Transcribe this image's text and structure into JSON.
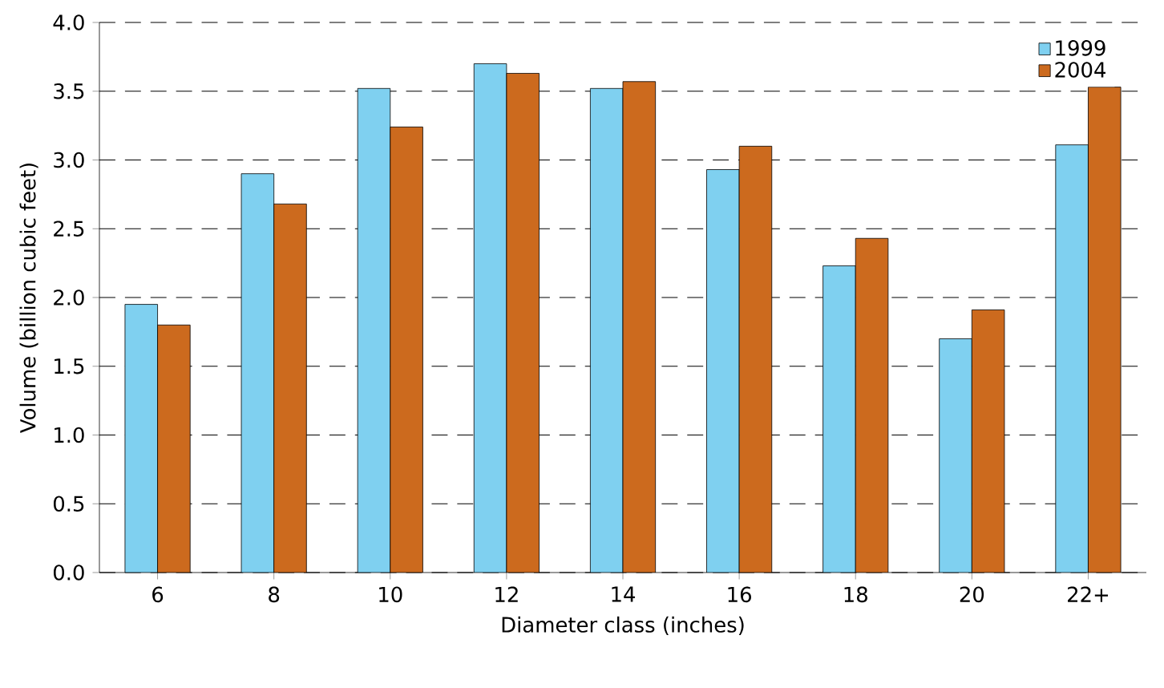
{
  "chart_data": {
    "type": "bar",
    "xlabel": "Diameter class (inches)",
    "ylabel": "Volume (billion cubic feet)",
    "categories": [
      "6",
      "8",
      "10",
      "12",
      "14",
      "16",
      "18",
      "20",
      "22+"
    ],
    "series": [
      {
        "name": "1999",
        "color": "#7fd0f0",
        "values": [
          1.95,
          2.9,
          3.52,
          3.7,
          3.52,
          2.93,
          2.23,
          1.7,
          3.11
        ]
      },
      {
        "name": "2004",
        "color": "#cc6a1e",
        "values": [
          1.8,
          2.68,
          3.24,
          3.63,
          3.57,
          3.1,
          2.43,
          1.91,
          3.53
        ]
      }
    ],
    "ylim": [
      0,
      4
    ],
    "yticks": [
      {
        "value": 0,
        "label": "0.0"
      },
      {
        "value": 0.5,
        "label": "0.5"
      },
      {
        "value": 1,
        "label": "1.0"
      },
      {
        "value": 1.5,
        "label": "1.5"
      },
      {
        "value": 2,
        "label": "2.0"
      },
      {
        "value": 2.5,
        "label": "2.5"
      },
      {
        "value": 3,
        "label": "3.0"
      },
      {
        "value": 3.5,
        "label": "3.5"
      },
      {
        "value": 4,
        "label": "4.0"
      }
    ],
    "grid": "y",
    "legend": "top right"
  }
}
